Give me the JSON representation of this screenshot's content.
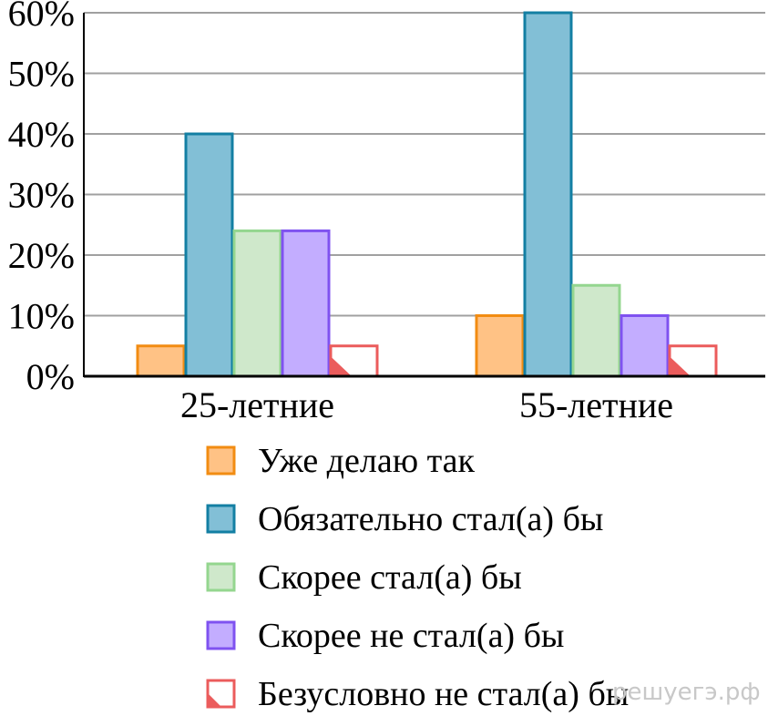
{
  "chart_data": {
    "type": "bar",
    "categories": [
      "25-летние",
      "55-летние"
    ],
    "series": [
      {
        "name": "Уже делаю так",
        "values": [
          5,
          10
        ],
        "fill": "#ffc285",
        "stroke": "#f28c12",
        "pattern": "solid"
      },
      {
        "name": "Обязательно стал(а) бы",
        "values": [
          40,
          60
        ],
        "fill": "#82bfd6",
        "stroke": "#137fa3",
        "pattern": "solid"
      },
      {
        "name": "Скорее стал(а) бы",
        "values": [
          24,
          15
        ],
        "fill": "#cfe8cb",
        "stroke": "#94d68f",
        "pattern": "solid"
      },
      {
        "name": "Скорее не стал(а) бы",
        "values": [
          24,
          10
        ],
        "fill": "#c3adff",
        "stroke": "#7f52f0",
        "pattern": "solid"
      },
      {
        "name": "Безусловно не стал(а) бы",
        "values": [
          5,
          5
        ],
        "fill": "#ffffff",
        "stroke": "#eb5c5c",
        "pattern": "corner"
      }
    ],
    "ylim": [
      0,
      60
    ],
    "yticks": [
      0,
      10,
      20,
      30,
      40,
      50,
      60
    ],
    "ytick_labels": [
      "0%",
      "10%",
      "20%",
      "30%",
      "40%",
      "50%",
      "60%"
    ],
    "grid": true,
    "legend": "bottom"
  },
  "watermark": "решуегэ.рф"
}
